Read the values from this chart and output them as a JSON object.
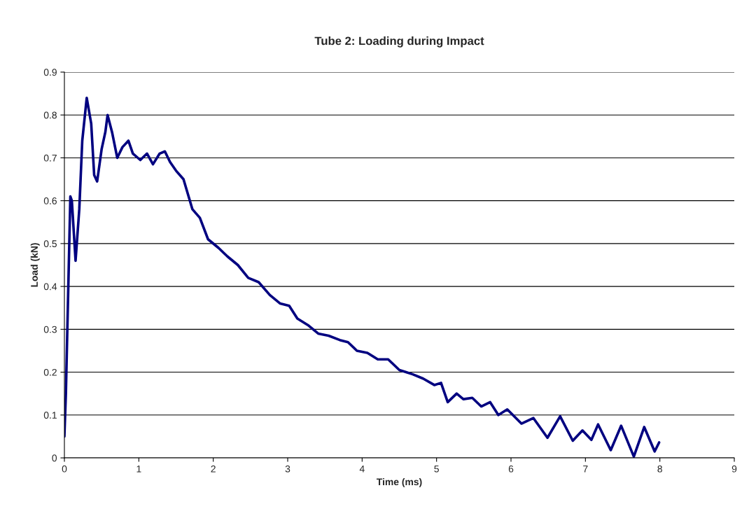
{
  "chart_data": {
    "type": "line",
    "title": "Tube 2: Loading during Impact",
    "xlabel": "Time (ms)",
    "ylabel": "Load (kN)",
    "xlim": [
      0,
      9
    ],
    "xticks": [
      0,
      1,
      2,
      3,
      4,
      5,
      6,
      7,
      8,
      9
    ],
    "ylim": [
      0,
      0.9
    ],
    "yticks": [
      0,
      0.1,
      0.2,
      0.3,
      0.4,
      0.5,
      0.6,
      0.7,
      0.8,
      0.9
    ],
    "grid": "y",
    "legend": false,
    "marker": "none",
    "line_style": "solid",
    "series": [
      {
        "color": "#000080",
        "x": [
          0,
          0.02,
          0.05,
          0.08,
          0.1,
          0.15,
          0.2,
          0.24,
          0.3,
          0.36,
          0.4,
          0.44,
          0.5,
          0.55,
          0.58,
          0.64,
          0.71,
          0.78,
          0.86,
          0.92,
          1.02,
          1.11,
          1.19,
          1.28,
          1.35,
          1.42,
          1.5,
          1.6,
          1.72,
          1.82,
          1.93,
          2.07,
          2.19,
          2.33,
          2.47,
          2.61,
          2.76,
          2.9,
          3.02,
          3.13,
          3.27,
          3.41,
          3.55,
          3.7,
          3.81,
          3.93,
          4.07,
          4.21,
          4.35,
          4.5,
          4.59,
          4.68,
          4.82,
          4.97,
          5.06,
          5.15,
          5.27,
          5.36,
          5.48,
          5.6,
          5.72,
          5.83,
          5.95,
          6.14,
          6.3,
          6.49,
          6.66,
          6.83,
          6.96,
          7.08,
          7.17,
          7.34,
          7.48,
          7.65,
          7.79,
          7.93,
          7.99
        ],
        "values": [
          0.05,
          0.15,
          0.38,
          0.61,
          0.6,
          0.46,
          0.58,
          0.74,
          0.84,
          0.78,
          0.66,
          0.645,
          0.72,
          0.76,
          0.8,
          0.76,
          0.7,
          0.725,
          0.74,
          0.71,
          0.695,
          0.71,
          0.685,
          0.71,
          0.715,
          0.69,
          0.67,
          0.65,
          0.58,
          0.56,
          0.51,
          0.49,
          0.47,
          0.45,
          0.42,
          0.41,
          0.38,
          0.36,
          0.355,
          0.325,
          0.31,
          0.29,
          0.285,
          0.275,
          0.27,
          0.25,
          0.245,
          0.23,
          0.23,
          0.205,
          0.2,
          0.195,
          0.185,
          0.17,
          0.175,
          0.13,
          0.15,
          0.137,
          0.14,
          0.12,
          0.13,
          0.1,
          0.113,
          0.08,
          0.093,
          0.047,
          0.097,
          0.04,
          0.064,
          0.042,
          0.078,
          0.018,
          0.075,
          0.003,
          0.072,
          0.015,
          0.036
        ]
      }
    ]
  }
}
